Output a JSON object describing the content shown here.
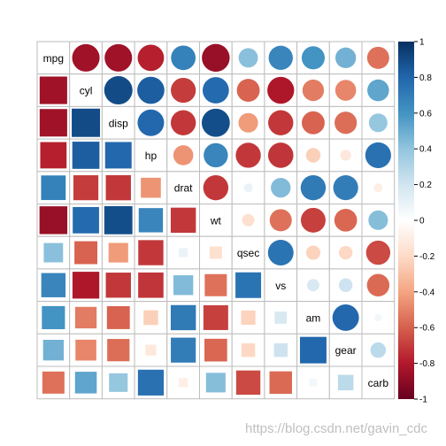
{
  "chart_data": {
    "type": "heatmap",
    "variables": [
      "mpg",
      "cyl",
      "disp",
      "hp",
      "drat",
      "wt",
      "qsec",
      "vs",
      "am",
      "gear",
      "carb"
    ],
    "upper_method": "circle",
    "lower_method": "square",
    "correlation_matrix": [
      [
        1.0,
        -0.85,
        -0.85,
        -0.78,
        0.68,
        -0.87,
        0.42,
        0.66,
        0.6,
        0.48,
        -0.55
      ],
      [
        -0.85,
        1.0,
        0.9,
        0.83,
        -0.7,
        0.78,
        -0.59,
        -0.81,
        -0.52,
        -0.49,
        0.53
      ],
      [
        -0.85,
        0.9,
        1.0,
        0.79,
        -0.71,
        0.89,
        -0.43,
        -0.71,
        -0.59,
        -0.56,
        0.39
      ],
      [
        -0.78,
        0.83,
        0.79,
        1.0,
        -0.45,
        0.66,
        -0.71,
        -0.72,
        -0.24,
        -0.13,
        0.75
      ],
      [
        0.68,
        -0.7,
        -0.71,
        -0.45,
        1.0,
        -0.71,
        0.09,
        0.44,
        0.71,
        0.7,
        -0.09
      ],
      [
        -0.87,
        0.78,
        0.89,
        0.66,
        -0.71,
        1.0,
        -0.17,
        -0.55,
        -0.69,
        -0.58,
        0.43
      ],
      [
        0.42,
        -0.59,
        -0.43,
        -0.71,
        0.09,
        -0.17,
        1.0,
        0.74,
        -0.23,
        -0.21,
        -0.66
      ],
      [
        0.66,
        -0.81,
        -0.71,
        -0.72,
        0.44,
        -0.55,
        0.74,
        1.0,
        0.17,
        0.21,
        -0.57
      ],
      [
        0.6,
        -0.52,
        -0.59,
        -0.24,
        0.71,
        -0.69,
        -0.23,
        0.17,
        1.0,
        0.79,
        0.06
      ],
      [
        0.48,
        -0.49,
        -0.56,
        -0.13,
        0.7,
        -0.58,
        -0.21,
        0.21,
        0.79,
        1.0,
        0.27
      ],
      [
        -0.55,
        0.53,
        0.39,
        0.75,
        -0.09,
        0.43,
        -0.66,
        -0.57,
        0.06,
        0.27,
        1.0
      ]
    ],
    "colorbar": {
      "range": [
        -1,
        1
      ],
      "tick_labels": [
        "1",
        "0.8",
        "0.6",
        "0.4",
        "0.2",
        "0",
        "-0.2",
        "-0.4",
        "-0.6",
        "-0.8",
        "-1"
      ],
      "tick_values": [
        1,
        0.8,
        0.6,
        0.4,
        0.2,
        0,
        -0.2,
        -0.4,
        -0.6,
        -0.8,
        -1
      ],
      "color_stops": [
        "#67001F",
        "#B2182B",
        "#D6604D",
        "#F4A582",
        "#FDDBC7",
        "#FFFFFF",
        "#D1E5F0",
        "#92C5DE",
        "#4393C3",
        "#2166AC",
        "#053061"
      ],
      "placement": "right"
    },
    "grid": true
  },
  "watermark": "https://blog.csdn.net/gavin_cdc"
}
